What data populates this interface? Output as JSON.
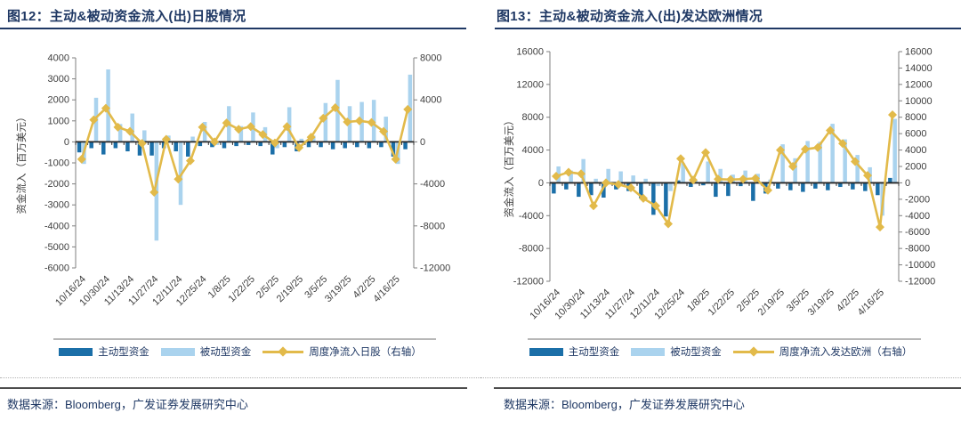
{
  "source_label": "数据来源：Bloomberg，广发证券发展研究中心",
  "colors": {
    "navy": "#1f3864",
    "active": "#1b6fa8",
    "passive": "#aad3ee",
    "gold": "#e2ba4a",
    "axis_line": "#7f7f7f",
    "zero_line": "#262626",
    "tick_text": "#404040",
    "frame_line": "#8c8c8c",
    "rule_dark": "#4d4d4d"
  },
  "chart_data": [
    {
      "type": "combo-bar-line",
      "title": "图12：主动&被动资金流入(出)日股情况",
      "x": [
        "10/16/24",
        "10/23/24",
        "10/30/24",
        "11/6/24",
        "11/13/24",
        "11/20/24",
        "11/27/24",
        "12/4/24",
        "12/11/24",
        "12/18/24",
        "12/25/24",
        "1/1/25",
        "1/8/25",
        "1/15/25",
        "1/22/25",
        "1/29/25",
        "2/5/25",
        "2/12/25",
        "2/19/25",
        "2/26/25",
        "3/5/25",
        "3/12/25",
        "3/19/25",
        "3/26/25",
        "4/2/25",
        "4/9/25",
        "4/16/25",
        "4/23/25"
      ],
      "x_label_every": 2,
      "x_tick_labels_shown": [
        "10/16/24",
        "10/30/24",
        "11/13/24",
        "11/27/24",
        "12/11/24",
        "12/25/24",
        "1/8/25",
        "1/22/25",
        "2/5/25",
        "2/19/25",
        "3/5/25",
        "3/19/25",
        "4/2/25",
        "4/16/25"
      ],
      "left_axis": {
        "min": -6000,
        "max": 4000,
        "step": 1000,
        "title": "资金流入（百万美元）"
      },
      "right_axis": {
        "min": -12000,
        "max": 8000,
        "step": 4000
      },
      "series": [
        {
          "name": "主动型资金",
          "type": "bar",
          "axis": "left",
          "color_key": "active",
          "values": [
            -500,
            -300,
            -600,
            -300,
            -450,
            -650,
            -650,
            -300,
            -450,
            -700,
            -200,
            -250,
            -300,
            -200,
            -150,
            -200,
            -600,
            -250,
            -450,
            -250,
            -250,
            -350,
            -300,
            -250,
            -300,
            -250,
            -700,
            -350
          ]
        },
        {
          "name": "被动型资金",
          "type": "bar",
          "axis": "left",
          "color_key": "passive",
          "values": [
            -1050,
            2100,
            3450,
            850,
            1350,
            550,
            -4700,
            300,
            -3000,
            250,
            950,
            -150,
            1700,
            750,
            1400,
            700,
            -300,
            1650,
            150,
            300,
            1850,
            2950,
            1700,
            1900,
            2000,
            1200,
            -1050,
            3200
          ]
        },
        {
          "name": "周度净流入日股（右轴）",
          "type": "line",
          "axis": "right",
          "color_key": "gold",
          "values": [
            -1650,
            2100,
            3200,
            1400,
            1000,
            -150,
            -4800,
            250,
            -3550,
            -1800,
            1400,
            0,
            1800,
            1200,
            1450,
            700,
            -100,
            1450,
            -550,
            450,
            2250,
            3250,
            1900,
            2000,
            1850,
            1000,
            -1650,
            3100
          ]
        }
      ]
    },
    {
      "type": "combo-bar-line",
      "title": "图13：主动&被动资金流入(出)发达欧洲情况",
      "x": [
        "10/16/24",
        "10/23/24",
        "10/30/24",
        "11/6/24",
        "11/13/24",
        "11/20/24",
        "11/27/24",
        "12/4/24",
        "12/11/24",
        "12/18/24",
        "12/25/24",
        "1/1/25",
        "1/8/25",
        "1/15/25",
        "1/22/25",
        "1/29/25",
        "2/5/25",
        "2/12/25",
        "2/19/25",
        "2/26/25",
        "3/5/25",
        "3/12/25",
        "3/19/25",
        "3/26/25",
        "4/2/25",
        "4/9/25",
        "4/16/25",
        "4/23/25"
      ],
      "x_label_every": 2,
      "x_tick_labels_shown": [
        "10/16/24",
        "10/30/24",
        "11/13/24",
        "11/27/24",
        "12/11/24",
        "12/25/24",
        "1/8/25",
        "1/22/25",
        "2/5/25",
        "2/19/25",
        "3/5/25",
        "3/19/25",
        "4/2/25",
        "4/16/25"
      ],
      "left_axis": {
        "min": -12000,
        "max": 16000,
        "step": 4000,
        "title": "资金流入（百万美元）"
      },
      "right_axis": {
        "min": -12000,
        "max": 16000,
        "step": 2000
      },
      "series": [
        {
          "name": "主动型资金",
          "type": "bar",
          "axis": "left",
          "color_key": "active",
          "values": [
            -1300,
            -800,
            -1700,
            -1500,
            -1800,
            -800,
            -1000,
            -1900,
            -3900,
            -4100,
            300,
            -500,
            -300,
            -1700,
            -1600,
            -400,
            -2200,
            -1300,
            -700,
            -900,
            -1100,
            -700,
            -900,
            -500,
            -800,
            -1000,
            -1500,
            600
          ]
        },
        {
          "name": "被动型资金",
          "type": "bar",
          "axis": "left",
          "color_key": "passive",
          "values": [
            2000,
            1500,
            2900,
            500,
            1700,
            1400,
            900,
            500,
            -400,
            -1000,
            2400,
            300,
            2600,
            1700,
            1000,
            1500,
            1100,
            400,
            4700,
            3000,
            5100,
            5000,
            7200,
            5300,
            3400,
            1900,
            -4000,
            7800
          ]
        },
        {
          "name": "周度净流入发达欧洲（右轴）",
          "type": "line",
          "axis": "right",
          "color_key": "gold",
          "values": [
            800,
            1300,
            1100,
            -2800,
            0,
            -200,
            -600,
            -1900,
            -2800,
            -5000,
            2950,
            350,
            3700,
            450,
            400,
            450,
            550,
            -900,
            4000,
            2000,
            4100,
            4300,
            6400,
            4800,
            2600,
            900,
            -5400,
            8300
          ]
        }
      ]
    }
  ]
}
